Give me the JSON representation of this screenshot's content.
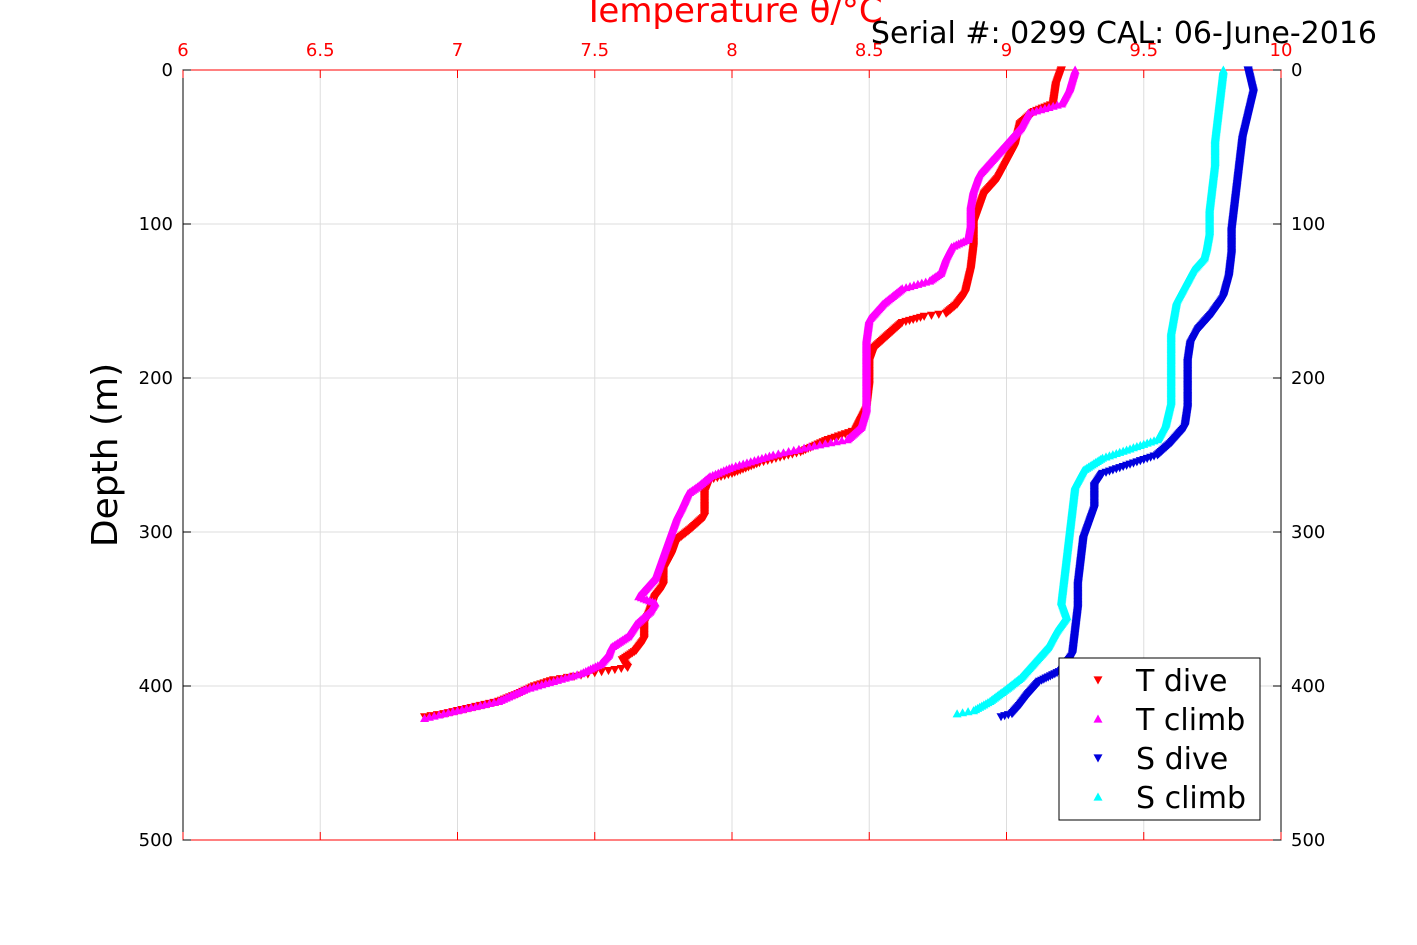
{
  "chart_data": {
    "type": "scatter",
    "title": "Temperature θ/°C",
    "subtitle": "Serial #: 0299 CAL: 06-June-2016",
    "xlabel": "Temperature θ/°C",
    "ylabel": "Depth (m)",
    "xlim": [
      6,
      10
    ],
    "ylim": [
      0,
      500
    ],
    "y_reversed": true,
    "grid": true,
    "legend_position": "bottom-right",
    "x_ticks": [
      "6",
      "6.5",
      "7",
      "7.5",
      "8",
      "8.5",
      "9",
      "9.5",
      "10"
    ],
    "y_ticks": [
      "0",
      "100",
      "200",
      "300",
      "400",
      "500"
    ],
    "colors": {
      "T dive": "#ff0000",
      "T climb": "#ff00ff",
      "S dive": "#0000dd",
      "S climb": "#00ffff",
      "axis_top": "#ff0000",
      "grid": "#dddddd"
    },
    "series": [
      {
        "name": "T dive",
        "marker": "triangle-down",
        "points": [
          [
            9.2,
            0
          ],
          [
            9.18,
            10
          ],
          [
            9.17,
            22
          ],
          [
            9.1,
            27
          ],
          [
            9.05,
            35
          ],
          [
            9.03,
            50
          ],
          [
            9.0,
            60
          ],
          [
            8.97,
            70
          ],
          [
            8.92,
            80
          ],
          [
            8.9,
            90
          ],
          [
            8.88,
            100
          ],
          [
            8.88,
            115
          ],
          [
            8.87,
            130
          ],
          [
            8.85,
            145
          ],
          [
            8.82,
            152
          ],
          [
            8.78,
            158
          ],
          [
            8.7,
            160
          ],
          [
            8.62,
            164
          ],
          [
            8.57,
            172
          ],
          [
            8.52,
            180
          ],
          [
            8.5,
            190
          ],
          [
            8.5,
            205
          ],
          [
            8.49,
            220
          ],
          [
            8.45,
            234
          ],
          [
            8.35,
            240
          ],
          [
            8.25,
            248
          ],
          [
            8.1,
            255
          ],
          [
            8.0,
            262
          ],
          [
            7.92,
            266
          ],
          [
            7.9,
            275
          ],
          [
            7.9,
            290
          ],
          [
            7.85,
            298
          ],
          [
            7.8,
            305
          ],
          [
            7.78,
            315
          ],
          [
            7.75,
            325
          ],
          [
            7.75,
            335
          ],
          [
            7.72,
            342
          ],
          [
            7.7,
            352
          ],
          [
            7.68,
            360
          ],
          [
            7.68,
            370
          ],
          [
            7.65,
            377
          ],
          [
            7.6,
            383
          ],
          [
            7.62,
            388
          ],
          [
            7.55,
            390
          ],
          [
            7.45,
            393
          ],
          [
            7.35,
            396
          ],
          [
            7.28,
            400
          ],
          [
            7.22,
            405
          ],
          [
            7.15,
            410
          ],
          [
            7.05,
            414
          ],
          [
            6.95,
            418
          ],
          [
            6.88,
            420
          ]
        ]
      },
      {
        "name": "T climb",
        "marker": "triangle-up",
        "points": [
          [
            9.25,
            0
          ],
          [
            9.23,
            12
          ],
          [
            9.2,
            22
          ],
          [
            9.08,
            28
          ],
          [
            9.05,
            38
          ],
          [
            9.0,
            48
          ],
          [
            8.95,
            58
          ],
          [
            8.9,
            68
          ],
          [
            8.88,
            78
          ],
          [
            8.87,
            88
          ],
          [
            8.87,
            100
          ],
          [
            8.86,
            110
          ],
          [
            8.8,
            115
          ],
          [
            8.78,
            122
          ],
          [
            8.76,
            132
          ],
          [
            8.72,
            137
          ],
          [
            8.62,
            142
          ],
          [
            8.55,
            152
          ],
          [
            8.5,
            162
          ],
          [
            8.49,
            175
          ],
          [
            8.49,
            190
          ],
          [
            8.49,
            205
          ],
          [
            8.49,
            220
          ],
          [
            8.47,
            232
          ],
          [
            8.42,
            240
          ],
          [
            8.3,
            244
          ],
          [
            8.15,
            250
          ],
          [
            8.0,
            258
          ],
          [
            7.92,
            264
          ],
          [
            7.88,
            270
          ],
          [
            7.84,
            275
          ],
          [
            7.82,
            283
          ],
          [
            7.8,
            290
          ],
          [
            7.78,
            300
          ],
          [
            7.76,
            310
          ],
          [
            7.74,
            320
          ],
          [
            7.72,
            330
          ],
          [
            7.68,
            338
          ],
          [
            7.66,
            342
          ],
          [
            7.72,
            346
          ],
          [
            7.7,
            352
          ],
          [
            7.65,
            360
          ],
          [
            7.62,
            368
          ],
          [
            7.56,
            375
          ],
          [
            7.55,
            380
          ],
          [
            7.52,
            386
          ],
          [
            7.45,
            392
          ],
          [
            7.35,
            397
          ],
          [
            7.25,
            402
          ],
          [
            7.15,
            410
          ],
          [
            7.05,
            414
          ],
          [
            6.95,
            418
          ],
          [
            6.88,
            421
          ]
        ]
      },
      {
        "name": "S dive",
        "marker": "triangle-down",
        "points": [
          [
            9.88,
            0
          ],
          [
            9.9,
            15
          ],
          [
            9.88,
            30
          ],
          [
            9.86,
            45
          ],
          [
            9.85,
            60
          ],
          [
            9.84,
            75
          ],
          [
            9.83,
            90
          ],
          [
            9.82,
            105
          ],
          [
            9.82,
            120
          ],
          [
            9.81,
            135
          ],
          [
            9.79,
            148
          ],
          [
            9.75,
            158
          ],
          [
            9.7,
            168
          ],
          [
            9.67,
            178
          ],
          [
            9.66,
            190
          ],
          [
            9.66,
            205
          ],
          [
            9.66,
            220
          ],
          [
            9.65,
            232
          ],
          [
            9.6,
            242
          ],
          [
            9.55,
            250
          ],
          [
            9.45,
            256
          ],
          [
            9.35,
            262
          ],
          [
            9.32,
            270
          ],
          [
            9.32,
            285
          ],
          [
            9.3,
            295
          ],
          [
            9.28,
            305
          ],
          [
            9.27,
            320
          ],
          [
            9.26,
            335
          ],
          [
            9.26,
            350
          ],
          [
            9.25,
            365
          ],
          [
            9.24,
            380
          ],
          [
            9.2,
            390
          ],
          [
            9.12,
            397
          ],
          [
            9.08,
            405
          ],
          [
            9.05,
            412
          ],
          [
            9.02,
            418
          ],
          [
            8.98,
            420
          ]
        ]
      },
      {
        "name": "S climb",
        "marker": "triangle-up",
        "points": [
          [
            9.79,
            0
          ],
          [
            9.78,
            15
          ],
          [
            9.77,
            30
          ],
          [
            9.76,
            45
          ],
          [
            9.76,
            60
          ],
          [
            9.75,
            75
          ],
          [
            9.74,
            90
          ],
          [
            9.74,
            105
          ],
          [
            9.73,
            115
          ],
          [
            9.72,
            122
          ],
          [
            9.68,
            130
          ],
          [
            9.65,
            140
          ],
          [
            9.62,
            150
          ],
          [
            9.61,
            160
          ],
          [
            9.6,
            170
          ],
          [
            9.6,
            185
          ],
          [
            9.6,
            200
          ],
          [
            9.6,
            215
          ],
          [
            9.58,
            230
          ],
          [
            9.55,
            240
          ],
          [
            9.45,
            246
          ],
          [
            9.35,
            252
          ],
          [
            9.28,
            260
          ],
          [
            9.25,
            270
          ],
          [
            9.24,
            285
          ],
          [
            9.23,
            300
          ],
          [
            9.22,
            315
          ],
          [
            9.21,
            330
          ],
          [
            9.2,
            345
          ],
          [
            9.22,
            355
          ],
          [
            9.18,
            365
          ],
          [
            9.15,
            375
          ],
          [
            9.1,
            385
          ],
          [
            9.05,
            395
          ],
          [
            9.0,
            402
          ],
          [
            8.94,
            410
          ],
          [
            8.88,
            416
          ],
          [
            8.82,
            418
          ]
        ]
      }
    ]
  },
  "legend": {
    "items": [
      "T dive",
      "T climb",
      "S dive",
      "S climb"
    ]
  }
}
